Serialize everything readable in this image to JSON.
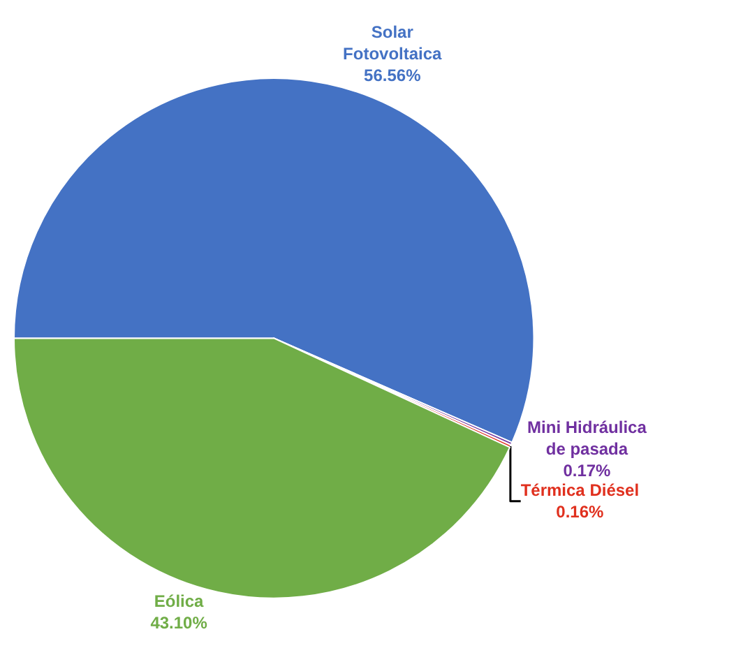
{
  "chart_data": {
    "type": "pie",
    "categories": [
      "Solar Fotovoltaica",
      "Mini Hidráulica de pasada",
      "Térmica Diésel",
      "Eólica"
    ],
    "values": [
      56.56,
      0.17,
      0.16,
      43.1
    ],
    "colors": [
      "#4472c4",
      "#7030a0",
      "#e0301e",
      "#70ad47"
    ],
    "value_labels": [
      "56.56%",
      "0.17%",
      "0.16%",
      "43.10%"
    ],
    "legend": false
  }
}
